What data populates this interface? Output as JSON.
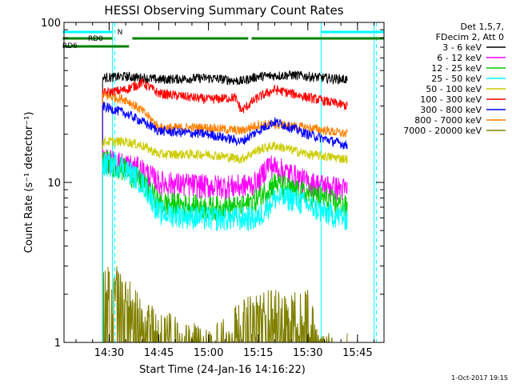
{
  "chart_data": {
    "type": "line",
    "title": "HESSI Observing Summary Count Rates",
    "xlabel": "Start Time (24-Jan-16 14:16:22)",
    "ylabel": "Count Rate (s⁻¹ detector⁻¹)",
    "y_scale": "log",
    "ylim": [
      1,
      100
    ],
    "xlim": [
      "14:16:22",
      "15:53:00"
    ],
    "x_ticks": [
      "14:30",
      "14:45",
      "15:00",
      "15:15",
      "15:30",
      "15:45"
    ],
    "y_ticks": [
      "1",
      "10",
      "100"
    ],
    "footer_date": "1-Oct-2017 19:15",
    "legend": {
      "header": [
        "Det 1,5,7,",
        "FDecim 2, Att 0"
      ],
      "entries": [
        {
          "label": "3 - 6 keV",
          "color": "#000000"
        },
        {
          "label": "6 - 12 keV",
          "color": "#ff00ff"
        },
        {
          "label": "12 - 25 keV",
          "color": "#00cc00"
        },
        {
          "label": "25 - 50 keV",
          "color": "#00ffff"
        },
        {
          "label": "50 - 100 keV",
          "color": "#cccc00"
        },
        {
          "label": "100 - 300 keV",
          "color": "#ff0000"
        },
        {
          "label": "300 - 800 keV",
          "color": "#0000ff"
        },
        {
          "label": "800 - 7000 keV",
          "color": "#ff8000"
        },
        {
          "label": "7000 - 20000 keV",
          "color": "#808000"
        }
      ]
    },
    "series": [
      {
        "name": "3 - 6 keV",
        "color": "#000000",
        "t": [
          "14:28",
          "14:35",
          "14:45",
          "15:00",
          "15:10",
          "15:15",
          "15:25",
          "15:35",
          "15:42"
        ],
        "values": [
          45,
          46,
          44,
          45,
          43,
          46,
          47,
          45,
          44
        ]
      },
      {
        "name": "6 - 12 keV",
        "color": "#ff00ff",
        "t": [
          "14:28",
          "14:35",
          "14:40",
          "14:45",
          "15:00",
          "15:10",
          "15:15",
          "15:18",
          "15:22",
          "15:30",
          "15:42"
        ],
        "values": [
          14,
          13,
          12,
          10,
          9.5,
          9.5,
          10,
          13,
          12,
          10,
          9
        ]
      },
      {
        "name": "12 - 25 keV",
        "color": "#00cc00",
        "t": [
          "14:28",
          "14:35",
          "14:40",
          "14:45",
          "15:00",
          "15:10",
          "15:15",
          "15:20",
          "15:25",
          "15:35",
          "15:42"
        ],
        "values": [
          14,
          12,
          10,
          7.5,
          7,
          7,
          8,
          10,
          9,
          8,
          7
        ]
      },
      {
        "name": "25 - 50 keV",
        "color": "#00ffff",
        "t": [
          "14:28",
          "14:33",
          "14:40",
          "14:45",
          "15:00",
          "15:10",
          "15:15",
          "15:20",
          "15:25",
          "15:35",
          "15:42"
        ],
        "values": [
          13,
          13,
          10,
          6.5,
          6,
          6,
          6,
          8,
          8,
          6.5,
          6
        ]
      },
      {
        "name": "50 - 100 keV",
        "color": "#cccc00",
        "t": [
          "14:28",
          "14:35",
          "14:40",
          "14:45",
          "15:00",
          "15:10",
          "15:15",
          "15:20",
          "15:30",
          "15:42"
        ],
        "values": [
          18,
          18,
          17,
          15,
          15,
          14,
          16,
          17,
          15,
          14
        ]
      },
      {
        "name": "100 - 300 keV",
        "color": "#ff0000",
        "t": [
          "14:28",
          "14:35",
          "14:40",
          "14:45",
          "15:00",
          "15:08",
          "15:10",
          "15:15",
          "15:20",
          "15:30",
          "15:42"
        ],
        "values": [
          36,
          38,
          42,
          36,
          33,
          34,
          28,
          34,
          38,
          34,
          30
        ]
      },
      {
        "name": "300 - 800 keV",
        "color": "#0000ff",
        "t": [
          "14:28",
          "14:35",
          "14:40",
          "14:45",
          "15:00",
          "15:10",
          "15:15",
          "15:20",
          "15:30",
          "15:42"
        ],
        "values": [
          30,
          27,
          24,
          21,
          20,
          18,
          21,
          24,
          20,
          17
        ]
      },
      {
        "name": "800 - 7000 keV",
        "color": "#ff8000",
        "t": [
          "14:28",
          "14:35",
          "14:40",
          "14:45",
          "15:00",
          "15:10",
          "15:15",
          "15:20",
          "15:30",
          "15:42"
        ],
        "values": [
          35,
          33,
          28,
          22,
          22,
          21,
          23,
          23,
          22,
          20
        ]
      },
      {
        "name": "7000 - 20000 keV",
        "color": "#808000",
        "t": [
          "14:28",
          "14:33",
          "14:40",
          "15:00",
          "15:15",
          "15:30",
          "15:33",
          "15:42"
        ],
        "values": [
          2.5,
          2.5,
          1.5,
          1,
          1.8,
          1.8,
          1,
          1
        ]
      }
    ],
    "annotations": {
      "rdo_label": "RD0",
      "rd6_label": "RD6",
      "n_label": "N",
      "night_markers": [
        "14:16:22",
        "14:31",
        "15:34",
        "15:50"
      ],
      "saa_markers": [
        "14:31",
        "15:50"
      ],
      "rd6_bars": [
        [
          "14:16",
          "14:36"
        ]
      ],
      "rd0_bars": [
        [
          "14:16",
          "14:31"
        ],
        [
          "14:37",
          "15:06"
        ],
        [
          "15:06",
          "15:12"
        ],
        [
          "15:13",
          "15:53"
        ]
      ],
      "n_bars": [
        [
          "14:16",
          "14:31"
        ],
        [
          "15:34",
          "15:53"
        ]
      ]
    }
  }
}
